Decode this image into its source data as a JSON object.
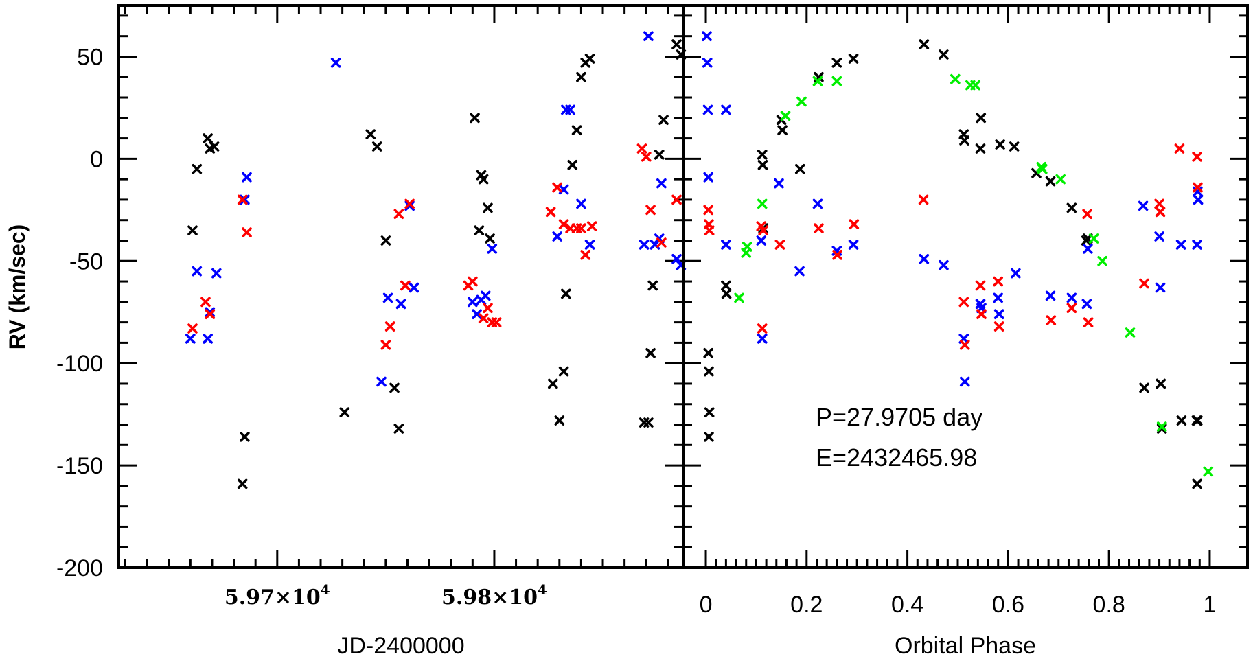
{
  "colors": {
    "black": "#000000",
    "blue": "#0000ff",
    "red": "#ff0000",
    "green": "#00ee00"
  },
  "ylabel": "RV (km/sec)",
  "chart_data": [
    {
      "type": "scatter",
      "title": "",
      "xlabel": "JD-2400000",
      "ylabel": "RV (km/sec)",
      "xlim": [
        59627,
        59887
      ],
      "ylim": [
        -200,
        75
      ],
      "xticks": [
        {
          "value": 59700,
          "mantissa": "5.97×10",
          "exp": "4"
        },
        {
          "value": 59800,
          "mantissa": "5.98×10",
          "exp": "4"
        }
      ],
      "yticks": [
        50,
        0,
        -50,
        -100,
        -150,
        -200
      ],
      "grid": false,
      "series": [
        {
          "color": "black",
          "points": [
            [
              59663,
              -5
            ],
            [
              59661,
              -35
            ],
            [
              59668,
              10
            ],
            [
              59669,
              5
            ],
            [
              59671,
              6
            ],
            [
              59685,
              -136
            ],
            [
              59684,
              -159
            ],
            [
              59731,
              -124
            ],
            [
              59743,
              12
            ],
            [
              59746,
              6
            ],
            [
              59750,
              -40
            ],
            [
              59754,
              -112
            ],
            [
              59756,
              -132
            ],
            [
              59791,
              20
            ],
            [
              59794,
              -8
            ],
            [
              59795,
              -10
            ],
            [
              59793,
              -35
            ],
            [
              59797,
              -24
            ],
            [
              59798,
              -39
            ],
            [
              59827,
              -110
            ],
            [
              59830,
              -128
            ],
            [
              59832,
              -104
            ],
            [
              59833,
              -66
            ],
            [
              59836,
              -3
            ],
            [
              59838,
              14
            ],
            [
              59840,
              40
            ],
            [
              59842,
              47
            ],
            [
              59844,
              49
            ],
            [
              59869,
              -129
            ],
            [
              59871,
              -129
            ],
            [
              59872,
              -95
            ],
            [
              59873,
              -62
            ],
            [
              59876,
              2
            ],
            [
              59878,
              19
            ],
            [
              59884,
              56
            ],
            [
              59886,
              51
            ]
          ]
        },
        {
          "color": "blue",
          "points": [
            [
              59660,
              -88
            ],
            [
              59663,
              -55
            ],
            [
              59668,
              -88
            ],
            [
              59669,
              -75
            ],
            [
              59672,
              -56
            ],
            [
              59685,
              -20
            ],
            [
              59686,
              -9
            ],
            [
              59727,
              47
            ],
            [
              59748,
              -109
            ],
            [
              59751,
              -68
            ],
            [
              59757,
              -71
            ],
            [
              59761,
              -23
            ],
            [
              59763,
              -63
            ],
            [
              59790,
              -70
            ],
            [
              59792,
              -76
            ],
            [
              59794,
              -69
            ],
            [
              59796,
              -67
            ],
            [
              59799,
              -44
            ],
            [
              59829,
              -38
            ],
            [
              59832,
              -15
            ],
            [
              59833,
              24
            ],
            [
              59835,
              24
            ],
            [
              59840,
              -22
            ],
            [
              59844,
              -42
            ],
            [
              59869,
              -42
            ],
            [
              59871,
              60
            ],
            [
              59874,
              -42
            ],
            [
              59876,
              -39
            ],
            [
              59877,
              -12
            ],
            [
              59884,
              -49
            ],
            [
              59886,
              -52
            ]
          ]
        },
        {
          "color": "red",
          "points": [
            [
              59661,
              -83
            ],
            [
              59667,
              -70
            ],
            [
              59669,
              -76
            ],
            [
              59684,
              -20
            ],
            [
              59686,
              -36
            ],
            [
              59750,
              -91
            ],
            [
              59752,
              -82
            ],
            [
              59756,
              -27
            ],
            [
              59759,
              -62
            ],
            [
              59761,
              -22
            ],
            [
              59788,
              -62
            ],
            [
              59790,
              -60
            ],
            [
              59795,
              -78
            ],
            [
              59797,
              -73
            ],
            [
              59799,
              -80
            ],
            [
              59801,
              -80
            ],
            [
              59826,
              -26
            ],
            [
              59829,
              -14
            ],
            [
              59832,
              -32
            ],
            [
              59835,
              -34
            ],
            [
              59838,
              -34
            ],
            [
              59840,
              -34
            ],
            [
              59842,
              -47
            ],
            [
              59845,
              -33
            ],
            [
              59868,
              5
            ],
            [
              59870,
              1
            ],
            [
              59872,
              -25
            ],
            [
              59877,
              -41
            ],
            [
              59884,
              -20
            ]
          ]
        }
      ]
    },
    {
      "type": "scatter",
      "title": "",
      "xlabel": "Orbital Phase",
      "ylabel": "",
      "xlim": [
        -0.045,
        1.075
      ],
      "ylim": [
        -200,
        75
      ],
      "xticks": [
        0,
        0.2,
        0.4,
        0.6,
        0.8,
        1
      ],
      "yticks": [
        50,
        0,
        -50,
        -100,
        -150,
        -200
      ],
      "annotations": [
        "P=27.9705 day",
        "E=2432465.98"
      ],
      "grid": false,
      "series": [
        {
          "color": "black",
          "points": [
            [
              0.005,
              -95
            ],
            [
              0.006,
              -104
            ],
            [
              0.007,
              -124
            ],
            [
              0.006,
              -136
            ],
            [
              0.04,
              -62
            ],
            [
              0.041,
              -66
            ],
            [
              0.112,
              2
            ],
            [
              0.113,
              -3
            ],
            [
              0.114,
              -34
            ],
            [
              0.15,
              19
            ],
            [
              0.152,
              14
            ],
            [
              0.187,
              -5
            ],
            [
              0.224,
              40
            ],
            [
              0.26,
              47
            ],
            [
              0.293,
              49
            ],
            [
              0.433,
              56
            ],
            [
              0.472,
              51
            ],
            [
              0.512,
              12
            ],
            [
              0.513,
              9
            ],
            [
              0.545,
              5
            ],
            [
              0.546,
              20
            ],
            [
              0.584,
              7
            ],
            [
              0.612,
              6
            ],
            [
              0.656,
              -7
            ],
            [
              0.684,
              -11
            ],
            [
              0.726,
              -24
            ],
            [
              0.755,
              -40
            ],
            [
              0.758,
              -39
            ],
            [
              0.87,
              -112
            ],
            [
              0.903,
              -110
            ],
            [
              0.905,
              -132
            ],
            [
              0.944,
              -128
            ],
            [
              0.974,
              -128
            ],
            [
              0.975,
              -159
            ],
            [
              0.976,
              -128
            ]
          ]
        },
        {
          "color": "blue",
          "points": [
            [
              0.002,
              60
            ],
            [
              0.003,
              47
            ],
            [
              0.004,
              24
            ],
            [
              0.005,
              -9
            ],
            [
              0.04,
              24
            ],
            [
              0.04,
              -42
            ],
            [
              0.11,
              -40
            ],
            [
              0.112,
              -88
            ],
            [
              0.145,
              -12
            ],
            [
              0.186,
              -55
            ],
            [
              0.222,
              -22
            ],
            [
              0.26,
              -45
            ],
            [
              0.293,
              -42
            ],
            [
              0.433,
              -49
            ],
            [
              0.472,
              -52
            ],
            [
              0.512,
              -88
            ],
            [
              0.514,
              -109
            ],
            [
              0.545,
              -71
            ],
            [
              0.547,
              -73
            ],
            [
              0.58,
              -68
            ],
            [
              0.582,
              -76
            ],
            [
              0.615,
              -56
            ],
            [
              0.684,
              -67
            ],
            [
              0.726,
              -68
            ],
            [
              0.756,
              -71
            ],
            [
              0.758,
              -44
            ],
            [
              0.868,
              -23
            ],
            [
              0.9,
              -38
            ],
            [
              0.902,
              -63
            ],
            [
              0.943,
              -42
            ],
            [
              0.975,
              -42
            ],
            [
              0.976,
              -16
            ],
            [
              0.977,
              -20
            ]
          ]
        },
        {
          "color": "red",
          "points": [
            [
              0.005,
              -25
            ],
            [
              0.006,
              -32
            ],
            [
              0.007,
              -35
            ],
            [
              0.11,
              -33
            ],
            [
              0.112,
              -83
            ],
            [
              0.114,
              -35
            ],
            [
              0.147,
              -42
            ],
            [
              0.224,
              -34
            ],
            [
              0.261,
              -47
            ],
            [
              0.294,
              -32
            ],
            [
              0.432,
              -20
            ],
            [
              0.512,
              -70
            ],
            [
              0.514,
              -91
            ],
            [
              0.545,
              -62
            ],
            [
              0.547,
              -76
            ],
            [
              0.58,
              -60
            ],
            [
              0.582,
              -82
            ],
            [
              0.685,
              -79
            ],
            [
              0.726,
              -73
            ],
            [
              0.757,
              -27
            ],
            [
              0.759,
              -80
            ],
            [
              0.87,
              -61
            ],
            [
              0.9,
              -22
            ],
            [
              0.902,
              -26
            ],
            [
              0.94,
              5
            ],
            [
              0.975,
              1
            ],
            [
              0.976,
              -14
            ]
          ]
        },
        {
          "color": "green",
          "points": [
            [
              0.066,
              -68
            ],
            [
              0.08,
              -46
            ],
            [
              0.082,
              -43
            ],
            [
              0.112,
              -22
            ],
            [
              0.158,
              21
            ],
            [
              0.19,
              28
            ],
            [
              0.222,
              38
            ],
            [
              0.26,
              38
            ],
            [
              0.495,
              39
            ],
            [
              0.525,
              36
            ],
            [
              0.535,
              36
            ],
            [
              0.666,
              -4
            ],
            [
              0.668,
              -5
            ],
            [
              0.704,
              -10
            ],
            [
              0.77,
              -39
            ],
            [
              0.787,
              -50
            ],
            [
              0.842,
              -85
            ],
            [
              0.905,
              -131
            ],
            [
              0.997,
              -153
            ]
          ]
        }
      ]
    }
  ]
}
